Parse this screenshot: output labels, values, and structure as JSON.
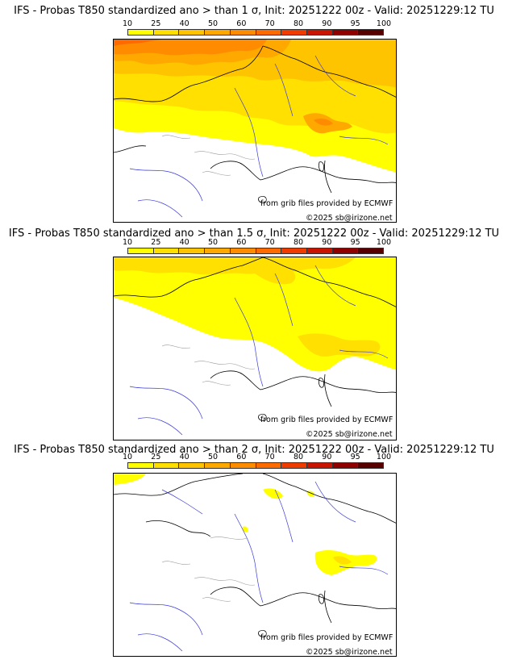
{
  "colorbar": {
    "ticks": [
      "10",
      "25",
      "40",
      "50",
      "60",
      "70",
      "80",
      "90",
      "95",
      "100"
    ],
    "colors": [
      "#ffff00",
      "#ffe000",
      "#ffc400",
      "#ffa800",
      "#ff8c00",
      "#ff6a00",
      "#ef3a00",
      "#c81400",
      "#8f0000",
      "#580000"
    ]
  },
  "credits": {
    "source": "from grib files provided by ECMWF",
    "copyright": "©2025 sb@irizone.net"
  },
  "panels": [
    {
      "title": "IFS - Probas T850  standardized ano > than 1 σ, Init: 20251222 00z - Valid: 20251229:12 TU"
    },
    {
      "title": "IFS - Probas T850  standardized ano > than 1.5 σ, Init: 20251222 00z - Valid: 20251229:12 TU"
    },
    {
      "title": "IFS - Probas T850  standardized ano > than 2 σ, Init: 20251222 00z - Valid: 20251229:12 TU"
    }
  ]
}
